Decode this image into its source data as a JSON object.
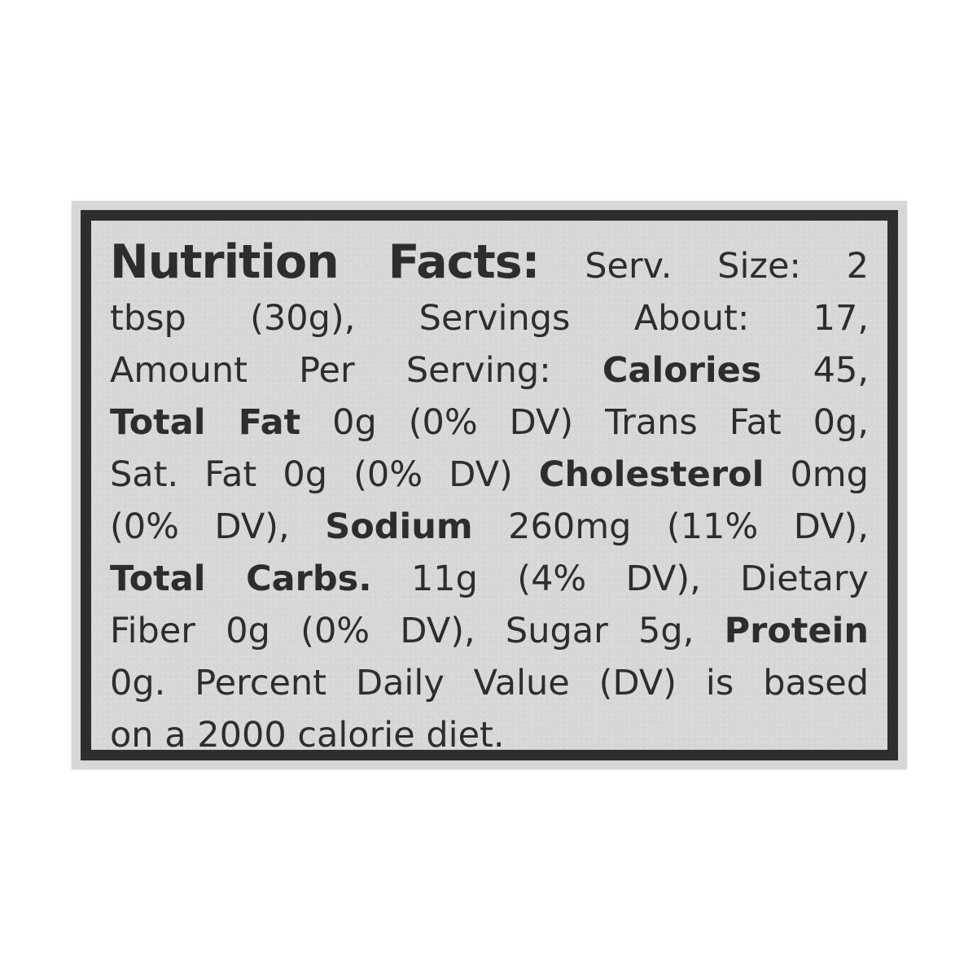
{
  "page": {
    "background_color": "#ffffff"
  },
  "label": {
    "background_color": "#d7d7d7",
    "border_color": "#2e2e2e",
    "text_color": "#2d2d2d",
    "lines": [
      {
        "align": "justify",
        "segments": [
          {
            "text": "Nutrition Facts:",
            "style": "title"
          },
          {
            "text": "Serv. Size: 2",
            "style": "regular"
          }
        ]
      },
      {
        "align": "justify",
        "segments": [
          {
            "text": "tbsp (30g), Servings About: 17,",
            "style": "regular"
          }
        ]
      },
      {
        "align": "justify",
        "segments": [
          {
            "text": "Amount Per Serving:",
            "style": "regular"
          },
          {
            "text": "Calories",
            "style": "bold"
          },
          {
            "text": "45,",
            "style": "regular"
          }
        ]
      },
      {
        "align": "justify",
        "segments": [
          {
            "text": "Total Fat",
            "style": "bold"
          },
          {
            "text": "0g (0% DV) Trans Fat 0g,",
            "style": "regular"
          }
        ]
      },
      {
        "align": "justify",
        "segments": [
          {
            "text": "Sat. Fat 0g (0% DV)",
            "style": "regular"
          },
          {
            "text": "Cholesterol",
            "style": "bold"
          },
          {
            "text": "0mg",
            "style": "regular"
          }
        ]
      },
      {
        "align": "justify",
        "segments": [
          {
            "text": "(0% DV),",
            "style": "regular"
          },
          {
            "text": "Sodium",
            "style": "bold"
          },
          {
            "text": "260mg (11% DV),",
            "style": "regular"
          }
        ]
      },
      {
        "align": "justify",
        "segments": [
          {
            "text": "Total Carbs.",
            "style": "bold"
          },
          {
            "text": "11g (4% DV), Dietary",
            "style": "regular"
          }
        ]
      },
      {
        "align": "justify",
        "segments": [
          {
            "text": "Fiber 0g (0% DV), Sugar 5g,",
            "style": "regular"
          },
          {
            "text": "Protein",
            "style": "bold"
          }
        ]
      },
      {
        "align": "justify",
        "segments": [
          {
            "text": "0g. Percent Daily Value (DV) is based",
            "style": "regular"
          }
        ]
      },
      {
        "align": "left",
        "segments": [
          {
            "text": "on a 2000 calorie diet.",
            "style": "regular"
          }
        ]
      }
    ],
    "nutrition_summary": {
      "serving_size": "2 tbsp (30g)",
      "servings_about": "17",
      "calories": "45",
      "total_fat": "0g (0% DV)",
      "trans_fat": "0g",
      "saturated_fat": "0g (0% DV)",
      "cholesterol": "0mg (0% DV)",
      "sodium": "260mg (11% DV)",
      "total_carbs": "11g (4% DV)",
      "dietary_fiber": "0g (0% DV)",
      "sugar": "5g",
      "protein": "0g",
      "footnote": "Percent Daily Value (DV) is based on a 2000 calorie diet."
    }
  }
}
